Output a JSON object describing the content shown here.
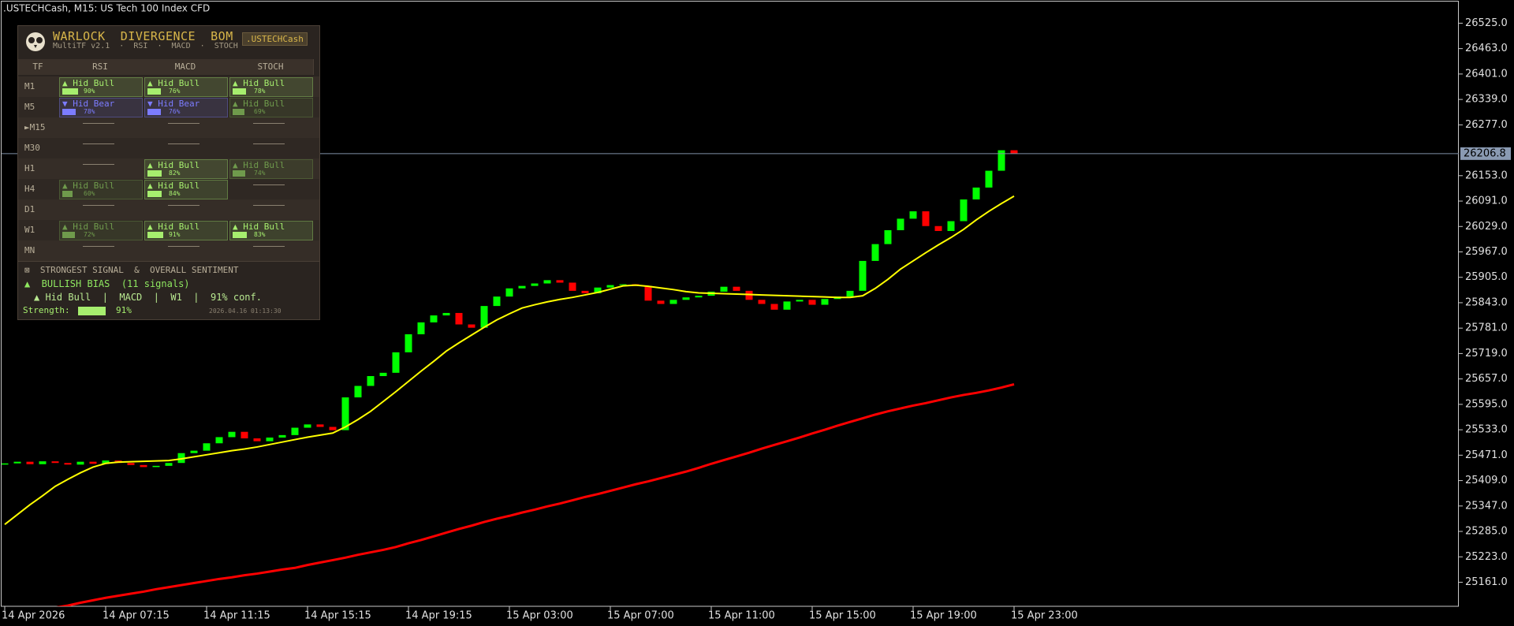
{
  "window_title": ".USTECHCash, M15:  US Tech 100 Index CFD",
  "chart_data": {
    "type": "candlestick",
    "categories": [
      "14 Apr 2026",
      null,
      null,
      null,
      null,
      null,
      null,
      null,
      "14 Apr 07:15",
      null,
      null,
      null,
      null,
      null,
      null,
      null,
      "14 Apr 11:15",
      null,
      null,
      null,
      null,
      null,
      null,
      null,
      "14 Apr 15:15",
      null,
      null,
      null,
      null,
      null,
      null,
      null,
      "14 Apr 19:15",
      null,
      null,
      null,
      null,
      null,
      null,
      null,
      "15 Apr 03:00",
      null,
      null,
      null,
      null,
      null,
      null,
      null,
      "15 Apr 07:00",
      null,
      null,
      null,
      null,
      null,
      null,
      null,
      "15 Apr 11:00",
      null,
      null,
      null,
      null,
      null,
      null,
      null,
      "15 Apr 15:00",
      null,
      null,
      null,
      null,
      null,
      null,
      null,
      "15 Apr 19:00",
      null,
      null,
      null,
      null,
      null,
      null,
      null,
      "15 Apr 23:00"
    ],
    "open": [
      25448,
      25451,
      25455,
      25449,
      25456,
      25452,
      25448,
      25455,
      25450,
      25458,
      25452,
      25447,
      25442,
      25445,
      25452,
      25476,
      25482,
      25500,
      25515,
      25528,
      25512,
      25505,
      25514,
      25520,
      25538,
      25546,
      25540,
      25532,
      25612,
      25640,
      25664,
      25672,
      25722,
      25766,
      25795,
      25812,
      25818,
      25790,
      25782,
      25835,
      25858,
      25878,
      25884,
      25890,
      25898,
      25892,
      25872,
      25866,
      25880,
      25886,
      25888,
      25884,
      25848,
      25840,
      25850,
      25856,
      25860,
      25870,
      25882,
      25872,
      25850,
      25840,
      25826,
      25846,
      25850,
      25838,
      25852,
      25858,
      25872,
      25945,
      25986,
      26020,
      26048,
      26066,
      26030,
      26018,
      26042,
      26095,
      26124,
      26165,
      26215
    ],
    "close": [
      25451,
      25455,
      25449,
      25456,
      25452,
      25448,
      25455,
      25450,
      25458,
      25452,
      25447,
      25442,
      25445,
      25452,
      25476,
      25482,
      25500,
      25515,
      25528,
      25512,
      25505,
      25514,
      25520,
      25538,
      25546,
      25540,
      25532,
      25612,
      25640,
      25664,
      25672,
      25722,
      25766,
      25795,
      25812,
      25818,
      25790,
      25782,
      25835,
      25858,
      25878,
      25884,
      25890,
      25898,
      25892,
      25872,
      25866,
      25880,
      25886,
      25888,
      25884,
      25848,
      25840,
      25850,
      25856,
      25860,
      25870,
      25882,
      25872,
      25850,
      25840,
      25826,
      25846,
      25850,
      25838,
      25852,
      25858,
      25872,
      25945,
      25986,
      26020,
      26048,
      26066,
      26030,
      26018,
      26042,
      26095,
      26124,
      26165,
      26215,
      26206.8
    ],
    "up_color": "#00ff00",
    "down_color": "#ff0000",
    "series": [
      {
        "color": "#ffff00",
        "values": [
          25302,
          25326,
          25350,
          25372,
          25395,
          25412,
          25428,
          25442,
          25451,
          25454,
          25455,
          25456,
          25457,
          25458,
          25462,
          25467,
          25472,
          25477,
          25482,
          25486,
          25491,
          25497,
          25503,
          25509,
          25515,
          25520,
          25525,
          25540,
          25558,
          25578,
          25602,
          25626,
          25651,
          25676,
          25700,
          25725,
          25745,
          25764,
          25783,
          25801,
          25816,
          25830,
          25838,
          25845,
          25851,
          25856,
          25862,
          25868,
          25876,
          25884,
          25886,
          25883,
          25879,
          25875,
          25870,
          25867,
          25866,
          25865,
          25864,
          25863,
          25862,
          25861,
          25860,
          25859,
          25858,
          25857,
          25856,
          25856,
          25860,
          25878,
          25900,
          25925,
          25945,
          25965,
          25984,
          26002,
          26022,
          26045,
          26066,
          26085,
          26103
        ]
      },
      {
        "color": "#ff0000",
        "values": [
          25074,
          25081,
          25087,
          25093,
          25099,
          25104,
          25111,
          25117,
          25123,
          25128,
          25133,
          25138,
          25144,
          25149,
          25154,
          25159,
          25164,
          25169,
          25173,
          25178,
          25182,
          25187,
          25192,
          25196,
          25203,
          25209,
          25215,
          25221,
          25228,
          25234,
          25240,
          25247,
          25256,
          25264,
          25273,
          25282,
          25291,
          25299,
          25308,
          25316,
          25323,
          25331,
          25338,
          25346,
          25353,
          25361,
          25369,
          25376,
          25384,
          25392,
          25400,
          25407,
          25415,
          25423,
          25431,
          25440,
          25450,
          25459,
          25468,
          25477,
          25487,
          25496,
          25505,
          25514,
          25524,
          25533,
          25543,
          25552,
          25561,
          25570,
          25578,
          25585,
          25592,
          25598,
          25605,
          25612,
          25618,
          25623,
          25629,
          25636,
          25644
        ]
      }
    ],
    "current_price": 26206.8,
    "ylim": [
      25102.3,
      26581.6
    ],
    "yticks": [
      {
        "value": 26525,
        "label": "26525.0"
      },
      {
        "value": 26463,
        "label": "26463.0"
      },
      {
        "value": 26401,
        "label": "26401.0"
      },
      {
        "value": 26339,
        "label": "26339.0"
      },
      {
        "value": 26277,
        "label": "26277.0"
      },
      {
        "value": 26153,
        "label": "26153.0"
      },
      {
        "value": 26091,
        "label": "26091.0"
      },
      {
        "value": 26029,
        "label": "26029.0"
      },
      {
        "value": 25967,
        "label": "25967.0"
      },
      {
        "value": 25905,
        "label": "25905.0"
      },
      {
        "value": 25843,
        "label": "25843.0"
      },
      {
        "value": 25781,
        "label": "25781.0"
      },
      {
        "value": 25719,
        "label": "25719.0"
      },
      {
        "value": 25657,
        "label": "25657.0"
      },
      {
        "value": 25595,
        "label": "25595.0"
      },
      {
        "value": 25533,
        "label": "25533.0"
      },
      {
        "value": 25471,
        "label": "25471.0"
      },
      {
        "value": 25409,
        "label": "25409.0"
      },
      {
        "value": 25347,
        "label": "25347.0"
      },
      {
        "value": 25285,
        "label": "25285.0"
      },
      {
        "value": 25223,
        "label": "25223.0"
      },
      {
        "value": 25161,
        "label": "25161.0"
      }
    ]
  },
  "panel": {
    "title": "WARLOCK  DIVERGENCE  BOMBER",
    "subtitle": "MultiTF v2.1  ·  RSI  ·  MACD  ·  STOCH",
    "symbol": ".USTECHCash",
    "columns": [
      "TF",
      "RSI",
      "MACD",
      "STOCH"
    ],
    "rows": [
      {
        "tf": "M1",
        "cells": [
          {
            "label": "▲ Hid Bull",
            "strength": {
              "value": 90,
              "label": "90%"
            },
            "color": "#a6ee6e"
          },
          {
            "label": "▲ Hid Bull",
            "strength": {
              "value": 76,
              "label": "76%"
            },
            "color": "#a6ee6e"
          },
          {
            "label": "▲ Hid Bull",
            "strength": {
              "value": 78,
              "label": "78%"
            },
            "color": "#a6ee6e"
          }
        ]
      },
      {
        "tf": "M5",
        "cells": [
          {
            "label": "▼ Hid Bear",
            "strength": {
              "value": 78,
              "label": "78%"
            },
            "color": "#7c7cff"
          },
          {
            "label": "▼ Hid Bear",
            "strength": {
              "value": 76,
              "label": "76%"
            },
            "color": "#7c7cff"
          },
          {
            "label": "▲ Hid Bull",
            "strength": {
              "value": 69,
              "label": "69%"
            },
            "color": "#6f9a4c"
          }
        ]
      },
      {
        "tf": "►M15",
        "cells": [
          null,
          null,
          null
        ]
      },
      {
        "tf": "M30",
        "cells": [
          null,
          null,
          null
        ]
      },
      {
        "tf": "H1",
        "cells": [
          null,
          {
            "label": "▲ Hid Bull",
            "strength": {
              "value": 82,
              "label": "82%"
            },
            "color": "#a6ee6e"
          },
          {
            "label": "▲ Hid Bull",
            "strength": {
              "value": 74,
              "label": "74%"
            },
            "color": "#6f9a4c"
          }
        ]
      },
      {
        "tf": "H4",
        "cells": [
          {
            "label": "▲ Hid Bull",
            "strength": {
              "value": 60,
              "label": "60%"
            },
            "color": "#6f9a4c"
          },
          {
            "label": "▲ Hid Bull",
            "strength": {
              "value": 84,
              "label": "84%"
            },
            "color": "#a6ee6e"
          },
          null
        ]
      },
      {
        "tf": "D1",
        "cells": [
          null,
          null,
          null
        ]
      },
      {
        "tf": "W1",
        "cells": [
          {
            "label": "▲ Hid Bull",
            "strength": {
              "value": 72,
              "label": "72%"
            },
            "color": "#6f9a4c"
          },
          {
            "label": "▲ Hid Bull",
            "strength": {
              "value": 91,
              "label": "91%"
            },
            "color": "#a6ee6e"
          },
          {
            "label": "▲ Hid Bull",
            "strength": {
              "value": 83,
              "label": "83%"
            },
            "color": "#a6ee6e"
          }
        ]
      },
      {
        "tf": "MN",
        "cells": [
          null,
          null,
          null
        ]
      }
    ],
    "footer": {
      "heading": "⊠  STRONGEST SIGNAL  &  OVERALL SENTIMENT",
      "bias": "▲  BULLISH BIAS  (11 signals)",
      "signal": "▲ Hid Bull  |  MACD  |  W1  |  91% conf.",
      "strength_label": "Strength:",
      "strength": {
        "value": 91,
        "label": "91%"
      },
      "timestamp": "2026.04.16 01:13:30"
    }
  }
}
